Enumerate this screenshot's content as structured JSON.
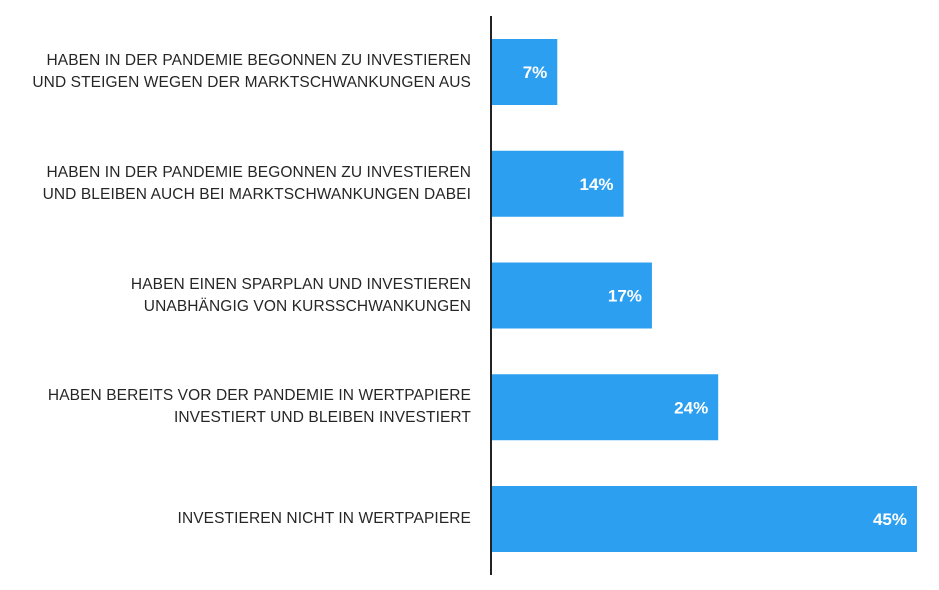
{
  "colors": {
    "bar": "#2c9ff0",
    "axis": "#222222",
    "label_text": "#262626",
    "value_text": "#ffffff"
  },
  "chart_data": {
    "type": "bar",
    "orientation": "horizontal",
    "categories": [
      [
        "HABEN IN DER PANDEMIE BEGONNEN ZU INVESTIEREN",
        "UND STEIGEN WEGEN DER MARKTSCHWANKUNGEN AUS"
      ],
      [
        "HABEN IN DER PANDEMIE BEGONNEN ZU INVESTIEREN",
        "UND BLEIBEN AUCH BEI MARKTSCHWANKUNGEN DABEI"
      ],
      [
        "HABEN EINEN SPARPLAN UND INVESTIEREN",
        "UNABHÄNGIG VON KURSSCHWANKUNGEN"
      ],
      [
        "HABEN BEREITS VOR DER PANDEMIE IN WERTPAPIERE",
        "INVESTIERT UND BLEIBEN INVESTIERT"
      ],
      [
        "INVESTIEREN NICHT IN WERTPAPIERE"
      ]
    ],
    "values": [
      7,
      14,
      17,
      24,
      45
    ],
    "value_labels": [
      "7%",
      "14%",
      "17%",
      "24%",
      "45%"
    ],
    "xlim": [
      0,
      45
    ],
    "grid": false,
    "legend": "none"
  }
}
